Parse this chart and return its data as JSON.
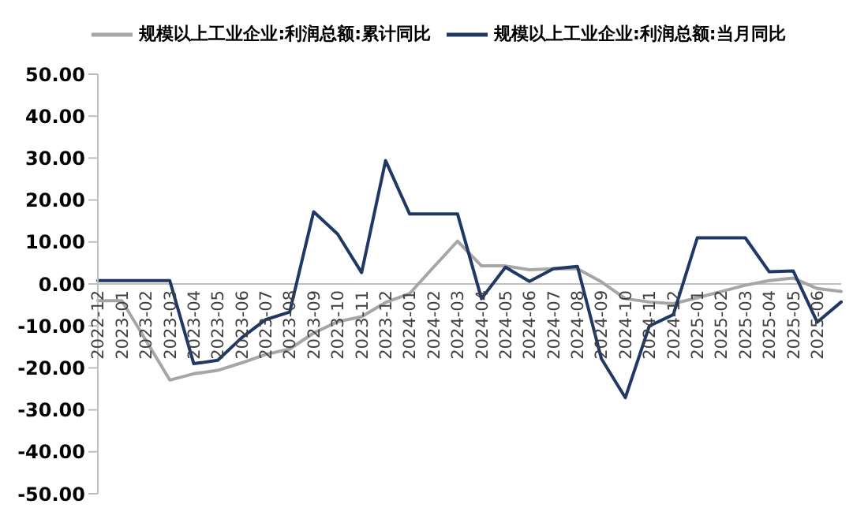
{
  "chart_data": {
    "type": "line",
    "categories": [
      "2022-12",
      "2023-01",
      "2023-02",
      "2023-03",
      "2023-04",
      "2023-05",
      "2023-06",
      "2023-07",
      "2023-08",
      "2023-09",
      "2023-10",
      "2023-11",
      "2023-12",
      "2024-01",
      "2024-02",
      "2024-03",
      "2024-04",
      "2024-05",
      "2024-06",
      "2024-07",
      "2024-08",
      "2024-09",
      "2024-10",
      "2024-11",
      "2024-12",
      "2025-01",
      "2025-02",
      "2025-03",
      "2025-04",
      "2025-05",
      "2025-06",
      null
    ],
    "series": [
      {
        "name": "规模以上工业企业:利润总额:累计同比",
        "color": "#a6a6a6",
        "values": [
          -4.0,
          -4.0,
          -13.4,
          -22.9,
          -21.4,
          -20.6,
          -18.8,
          -16.8,
          -15.5,
          -11.7,
          -9.0,
          -7.8,
          -4.4,
          -2.3,
          4.0,
          10.2,
          4.3,
          4.3,
          3.4,
          3.6,
          3.6,
          0.5,
          -3.5,
          -4.3,
          -4.7,
          -3.3,
          -1.8,
          -0.3,
          0.8,
          1.4,
          -1.1,
          -1.8
        ]
      },
      {
        "name": "规模以上工业企业:利润总额:当月同比",
        "color": "#1f3864",
        "values": [
          0.8,
          0.8,
          0.8,
          0.8,
          -19.0,
          -18.2,
          -12.8,
          -8.5,
          -6.7,
          17.2,
          11.9,
          2.7,
          29.4,
          16.7,
          16.7,
          16.7,
          -3.5,
          4.0,
          0.6,
          3.6,
          4.2,
          -17.8,
          -27.1,
          -10.0,
          -7.3,
          11.0,
          11.0,
          11.0,
          2.9,
          3.1,
          -9.1,
          -4.3
        ]
      }
    ],
    "ylim": [
      -50,
      50
    ],
    "yticks": [
      {
        "value": -50,
        "label": "-50.00"
      },
      {
        "value": -40,
        "label": "-40.00"
      },
      {
        "value": -30,
        "label": "-30.00"
      },
      {
        "value": -20,
        "label": "-20.00"
      },
      {
        "value": -10,
        "label": "-10.00"
      },
      {
        "value": 0,
        "label": "0.00"
      },
      {
        "value": 10,
        "label": "10.00"
      },
      {
        "value": 20,
        "label": "20.00"
      },
      {
        "value": 30,
        "label": "30.00"
      },
      {
        "value": 40,
        "label": "40.00"
      },
      {
        "value": 50,
        "label": "50.00"
      }
    ],
    "legend": "top",
    "grid": false,
    "marker": "none",
    "line_style": "solid"
  }
}
